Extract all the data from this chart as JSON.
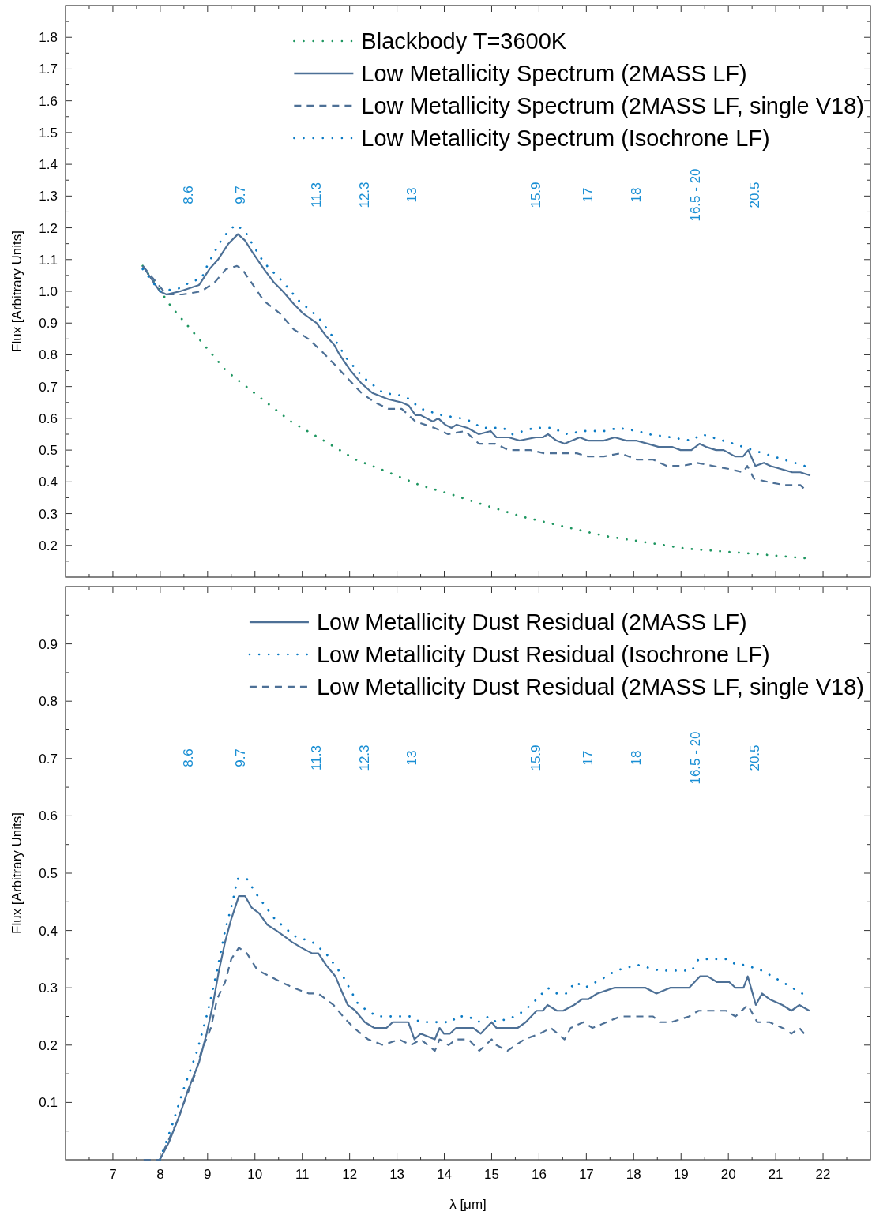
{
  "chart_data": [
    {
      "type": "line",
      "ylabel": "Flux [Arbitrary Units]",
      "legend": "top right",
      "tick_labels": "y",
      "xlim": [
        6,
        23
      ],
      "xticks": [
        {
          "value": 6.5,
          "label": null
        },
        7,
        {
          "value": 7.5,
          "label": null
        },
        8,
        {
          "value": 8.5,
          "label": null
        },
        9,
        {
          "value": 9.5,
          "label": null
        },
        10,
        {
          "value": 10.5,
          "label": null
        },
        11,
        {
          "value": 11.5,
          "label": null
        },
        12,
        {
          "value": 12.5,
          "label": null
        },
        13,
        {
          "value": 13.5,
          "label": null
        },
        14,
        {
          "value": 14.5,
          "label": null
        },
        15,
        {
          "value": 15.5,
          "label": null
        },
        16,
        {
          "value": 16.5,
          "label": null
        },
        17,
        {
          "value": 17.5,
          "label": null
        },
        18,
        {
          "value": 18.5,
          "label": null
        },
        19,
        {
          "value": 19.5,
          "label": null
        },
        20,
        {
          "value": 20.5,
          "label": null
        },
        21,
        {
          "value": 21.5,
          "label": null
        },
        22,
        {
          "value": 22.5,
          "label": null
        }
      ],
      "ylim": [
        0.1,
        1.9
      ],
      "yticks": [
        {
          "value": 0.15,
          "label": null
        },
        0.2,
        {
          "value": 0.25,
          "label": null
        },
        0.3,
        {
          "value": 0.35,
          "label": null
        },
        0.4,
        {
          "value": 0.45,
          "label": null
        },
        0.5,
        {
          "value": 0.55,
          "label": null
        },
        0.6,
        {
          "value": 0.65,
          "label": null
        },
        0.7,
        {
          "value": 0.75,
          "label": null
        },
        0.8,
        {
          "value": 0.85,
          "label": null
        },
        0.9,
        {
          "value": 0.95,
          "label": null
        },
        {
          "value": 1,
          "label": "1.0"
        },
        {
          "value": 1.05,
          "label": null
        },
        1.1,
        {
          "value": 1.15,
          "label": null
        },
        1.2,
        {
          "value": 1.25,
          "label": null
        },
        1.3,
        {
          "value": 1.35,
          "label": null
        },
        1.4,
        {
          "value": 1.45,
          "label": null
        },
        1.5,
        {
          "value": 1.55,
          "label": null
        },
        1.6,
        {
          "value": 1.65,
          "label": null
        },
        1.7,
        {
          "value": 1.75,
          "label": null
        },
        1.8,
        {
          "value": 1.85,
          "label": null
        }
      ],
      "annotations": [
        "8.6",
        "9.7",
        "11.3",
        "12.3",
        "13",
        "15.9",
        "17",
        "18",
        "16.5 - 20",
        "20.5"
      ],
      "series": [
        {
          "name": "Blackbody T=3600K",
          "color": "#1e9660",
          "line_style": "dotted",
          "x": [
            7.63,
            8.24,
            8.82,
            9.39,
            10.07,
            10.76,
            11.45,
            12.13,
            12.82,
            13.48,
            14.16,
            14.78,
            15.65,
            16.51,
            17.37,
            18.24,
            19.1,
            19.97,
            20.83,
            21.61
          ],
          "values": [
            1.08,
            0.95,
            0.85,
            0.75,
            0.67,
            0.59,
            0.53,
            0.47,
            0.43,
            0.39,
            0.36,
            0.33,
            0.29,
            0.26,
            0.23,
            0.21,
            0.19,
            0.18,
            0.17,
            0.16
          ]
        },
        {
          "name": "Low Metallicity Spectrum (2MASS LF)",
          "color": "#4d7096",
          "line_style": "solid",
          "x": [
            7.63,
            7.99,
            8.13,
            8.42,
            8.82,
            9.04,
            9.22,
            9.44,
            9.64,
            9.79,
            9.96,
            10.19,
            10.39,
            10.59,
            10.82,
            11.02,
            11.3,
            11.5,
            11.68,
            11.79,
            12.02,
            12.25,
            12.48,
            12.82,
            13.1,
            13.25,
            13.39,
            13.5,
            13.76,
            13.87,
            14.02,
            14.15,
            14.26,
            14.49,
            14.73,
            14.98,
            15.1,
            15.36,
            15.59,
            15.93,
            16.08,
            16.19,
            16.37,
            16.54,
            16.86,
            17.03,
            17.23,
            17.37,
            17.6,
            17.84,
            18.05,
            18.3,
            18.53,
            18.81,
            18.99,
            19.22,
            19.39,
            19.53,
            19.74,
            19.9,
            20.14,
            20.31,
            20.42,
            20.57,
            20.75,
            20.89,
            21.12,
            21.35,
            21.52,
            21.73
          ],
          "values": [
            1.08,
            1.0,
            0.99,
            1.0,
            1.02,
            1.07,
            1.1,
            1.15,
            1.18,
            1.16,
            1.12,
            1.07,
            1.03,
            1.0,
            0.96,
            0.93,
            0.9,
            0.86,
            0.83,
            0.8,
            0.75,
            0.71,
            0.68,
            0.66,
            0.65,
            0.64,
            0.61,
            0.61,
            0.59,
            0.6,
            0.58,
            0.57,
            0.58,
            0.57,
            0.55,
            0.56,
            0.54,
            0.54,
            0.53,
            0.54,
            0.54,
            0.55,
            0.53,
            0.52,
            0.54,
            0.53,
            0.53,
            0.53,
            0.54,
            0.53,
            0.53,
            0.52,
            0.51,
            0.51,
            0.5,
            0.5,
            0.52,
            0.51,
            0.5,
            0.5,
            0.48,
            0.48,
            0.5,
            0.45,
            0.46,
            0.45,
            0.44,
            0.43,
            0.43,
            0.42
          ]
        },
        {
          "name": "Low Metallicity Spectrum (2MASS LF, single V18)",
          "color": "#4d7096",
          "line_style": "dashed",
          "x": [
            7.63,
            8.13,
            8.47,
            8.87,
            9.16,
            9.39,
            9.62,
            9.73,
            9.96,
            10.19,
            10.53,
            10.82,
            11.13,
            11.42,
            11.68,
            11.93,
            12.25,
            12.53,
            12.82,
            13.1,
            13.39,
            13.79,
            14.08,
            14.44,
            14.73,
            15.07,
            15.36,
            15.82,
            16.11,
            16.57,
            16.8,
            17.03,
            17.37,
            17.72,
            18.07,
            18.41,
            18.7,
            19.03,
            19.33,
            19.68,
            20.03,
            20.31,
            20.4,
            20.54,
            20.83,
            21.18,
            21.52,
            21.59
          ],
          "values": [
            1.08,
            0.99,
            0.99,
            1.0,
            1.03,
            1.07,
            1.08,
            1.07,
            1.02,
            0.97,
            0.93,
            0.88,
            0.85,
            0.81,
            0.77,
            0.73,
            0.68,
            0.65,
            0.63,
            0.63,
            0.59,
            0.57,
            0.55,
            0.56,
            0.52,
            0.52,
            0.5,
            0.5,
            0.49,
            0.49,
            0.49,
            0.48,
            0.48,
            0.49,
            0.47,
            0.47,
            0.45,
            0.45,
            0.46,
            0.45,
            0.44,
            0.43,
            0.45,
            0.41,
            0.4,
            0.39,
            0.39,
            0.38
          ]
        },
        {
          "name": "Low Metallicity Spectrum (Isochrone LF)",
          "color": "#0a7ac4",
          "line_style": "dotted",
          "x": [
            7.63,
            7.99,
            8.42,
            8.64,
            8.87,
            8.99,
            9.24,
            9.39,
            9.59,
            9.79,
            9.9,
            10.19,
            10.59,
            10.93,
            11.33,
            11.68,
            11.93,
            12.28,
            12.71,
            13.17,
            13.51,
            13.94,
            14.35,
            14.58,
            14.78,
            15.24,
            15.44,
            15.9,
            16.31,
            16.54,
            16.97,
            17.42,
            17.66,
            18.09,
            18.32,
            18.79,
            19.22,
            19.44,
            19.88,
            20.11,
            20.52,
            20.95,
            21.4,
            21.61
          ],
          "values": [
            1.07,
            1.0,
            1.01,
            1.03,
            1.04,
            1.08,
            1.15,
            1.18,
            1.21,
            1.19,
            1.16,
            1.09,
            1.03,
            0.97,
            0.92,
            0.85,
            0.79,
            0.73,
            0.68,
            0.67,
            0.63,
            0.61,
            0.6,
            0.59,
            0.57,
            0.57,
            0.55,
            0.57,
            0.57,
            0.55,
            0.56,
            0.56,
            0.57,
            0.56,
            0.55,
            0.54,
            0.53,
            0.55,
            0.53,
            0.52,
            0.5,
            0.48,
            0.46,
            0.45
          ]
        }
      ]
    },
    {
      "type": "line",
      "xlabel": "λ [μm]",
      "ylabel": "Flux [Arbitrary Units]",
      "legend": "top right",
      "xlim": [
        6,
        23
      ],
      "xticks": [
        {
          "value": 6.5,
          "label": null
        },
        7,
        {
          "value": 7.5,
          "label": null
        },
        8,
        {
          "value": 8.5,
          "label": null
        },
        9,
        {
          "value": 9.5,
          "label": null
        },
        10,
        {
          "value": 10.5,
          "label": null
        },
        11,
        {
          "value": 11.5,
          "label": null
        },
        12,
        {
          "value": 12.5,
          "label": null
        },
        13,
        {
          "value": 13.5,
          "label": null
        },
        14,
        {
          "value": 14.5,
          "label": null
        },
        15,
        {
          "value": 15.5,
          "label": null
        },
        16,
        {
          "value": 16.5,
          "label": null
        },
        17,
        {
          "value": 17.5,
          "label": null
        },
        18,
        {
          "value": 18.5,
          "label": null
        },
        19,
        {
          "value": 19.5,
          "label": null
        },
        20,
        {
          "value": 20.5,
          "label": null
        },
        21,
        {
          "value": 21.5,
          "label": null
        },
        22,
        {
          "value": 22.5,
          "label": null
        }
      ],
      "ylim": [
        0,
        1
      ],
      "yticks": [
        {
          "value": 0.05,
          "label": null
        },
        0.1,
        {
          "value": 0.15,
          "label": null
        },
        0.2,
        {
          "value": 0.25,
          "label": null
        },
        0.3,
        {
          "value": 0.35,
          "label": null
        },
        0.4,
        {
          "value": 0.45,
          "label": null
        },
        0.5,
        {
          "value": 0.55,
          "label": null
        },
        0.6,
        {
          "value": 0.65,
          "label": null
        },
        0.7,
        {
          "value": 0.75,
          "label": null
        },
        0.8,
        {
          "value": 0.85,
          "label": null
        },
        0.9,
        {
          "value": 0.95,
          "label": null
        }
      ],
      "annotations": [
        "8.6",
        "9.7",
        "11.3",
        "12.3",
        "13",
        "15.9",
        "17",
        "18",
        "16.5 - 20",
        "20.5"
      ],
      "series": [
        {
          "name": "Low Metallicity Dust Residual (2MASS LF)",
          "color": "#4d7096",
          "line_style": "solid",
          "x": [
            7.99,
            8.18,
            8.42,
            8.58,
            8.82,
            8.98,
            9.11,
            9.24,
            9.37,
            9.5,
            9.66,
            9.79,
            9.93,
            10.09,
            10.26,
            10.45,
            10.62,
            10.78,
            10.98,
            11.21,
            11.34,
            11.5,
            11.7,
            11.8,
            11.96,
            12.12,
            12.32,
            12.52,
            12.78,
            12.91,
            13.24,
            13.37,
            13.5,
            13.8,
            13.9,
            13.99,
            14.12,
            14.25,
            14.44,
            14.61,
            14.77,
            15.0,
            15.1,
            15.23,
            15.36,
            15.55,
            15.72,
            15.95,
            16.08,
            16.18,
            16.38,
            16.51,
            16.74,
            16.91,
            17.04,
            17.23,
            17.59,
            17.79,
            18.05,
            18.25,
            18.48,
            18.77,
            19.0,
            19.17,
            19.4,
            19.56,
            19.76,
            20.02,
            20.15,
            20.32,
            20.41,
            20.58,
            20.71,
            20.87,
            21.14,
            21.33,
            21.5,
            21.71
          ],
          "values": [
            0.0,
            0.03,
            0.08,
            0.12,
            0.17,
            0.22,
            0.27,
            0.33,
            0.38,
            0.42,
            0.46,
            0.46,
            0.44,
            0.43,
            0.41,
            0.4,
            0.39,
            0.38,
            0.37,
            0.36,
            0.36,
            0.34,
            0.32,
            0.3,
            0.27,
            0.26,
            0.24,
            0.23,
            0.23,
            0.24,
            0.24,
            0.21,
            0.22,
            0.21,
            0.23,
            0.22,
            0.22,
            0.23,
            0.23,
            0.23,
            0.22,
            0.24,
            0.23,
            0.23,
            0.23,
            0.23,
            0.24,
            0.26,
            0.26,
            0.27,
            0.26,
            0.26,
            0.27,
            0.28,
            0.28,
            0.29,
            0.3,
            0.3,
            0.3,
            0.3,
            0.29,
            0.3,
            0.3,
            0.3,
            0.32,
            0.32,
            0.31,
            0.31,
            0.3,
            0.3,
            0.32,
            0.27,
            0.29,
            0.28,
            0.27,
            0.26,
            0.27,
            0.26
          ]
        },
        {
          "name": "Low Metallicity Dust Residual (Isochrone LF)",
          "color": "#0a7ac4",
          "line_style": "dotted",
          "x": [
            7.99,
            8.25,
            8.48,
            8.78,
            9.01,
            9.2,
            9.37,
            9.53,
            9.63,
            9.83,
            10.06,
            10.42,
            10.84,
            11.21,
            11.5,
            11.86,
            12.19,
            12.58,
            13.01,
            13.27,
            13.5,
            13.83,
            14.16,
            14.25,
            14.51,
            14.71,
            14.94,
            15.1,
            15.49,
            15.69,
            15.95,
            16.18,
            16.38,
            16.57,
            16.77,
            16.97,
            17.43,
            17.62,
            18.08,
            18.55,
            18.97,
            19.23,
            19.37,
            19.69,
            19.95,
            20.18,
            20.35,
            20.71,
            21.14,
            21.56
          ],
          "values": [
            0.0,
            0.06,
            0.12,
            0.19,
            0.26,
            0.33,
            0.4,
            0.45,
            0.49,
            0.49,
            0.46,
            0.42,
            0.39,
            0.38,
            0.36,
            0.32,
            0.27,
            0.25,
            0.25,
            0.25,
            0.24,
            0.24,
            0.24,
            0.25,
            0.25,
            0.24,
            0.25,
            0.24,
            0.25,
            0.26,
            0.28,
            0.3,
            0.29,
            0.29,
            0.31,
            0.3,
            0.32,
            0.33,
            0.34,
            0.33,
            0.33,
            0.33,
            0.35,
            0.35,
            0.35,
            0.34,
            0.34,
            0.33,
            0.31,
            0.29
          ]
        },
        {
          "name": "Low Metallicity Dust Residual (2MASS LF, single V18)",
          "color": "#4d7096",
          "line_style": "dashed",
          "x": [
            7.65,
            7.99,
            8.15,
            8.32,
            8.55,
            8.74,
            8.87,
            9.07,
            9.2,
            9.37,
            9.5,
            9.66,
            9.83,
            10.06,
            10.32,
            10.55,
            10.81,
            11.14,
            11.34,
            11.66,
            11.86,
            12.09,
            12.39,
            12.71,
            13.04,
            13.3,
            13.5,
            13.8,
            13.9,
            14.09,
            14.25,
            14.51,
            14.74,
            15.0,
            15.1,
            15.33,
            15.69,
            16.02,
            16.25,
            16.54,
            16.67,
            16.94,
            17.13,
            17.43,
            17.72,
            18.12,
            18.41,
            18.55,
            18.79,
            19.17,
            19.37,
            19.69,
            19.95,
            20.15,
            20.41,
            20.61,
            20.87,
            21.14,
            21.33,
            21.5,
            21.6
          ],
          "values": [
            0.0,
            0.0,
            0.03,
            0.06,
            0.11,
            0.15,
            0.19,
            0.23,
            0.28,
            0.31,
            0.35,
            0.37,
            0.36,
            0.33,
            0.32,
            0.31,
            0.3,
            0.29,
            0.29,
            0.27,
            0.25,
            0.23,
            0.21,
            0.2,
            0.21,
            0.2,
            0.21,
            0.19,
            0.21,
            0.2,
            0.21,
            0.21,
            0.19,
            0.21,
            0.2,
            0.19,
            0.21,
            0.22,
            0.23,
            0.21,
            0.23,
            0.24,
            0.23,
            0.24,
            0.25,
            0.25,
            0.25,
            0.24,
            0.24,
            0.25,
            0.26,
            0.26,
            0.26,
            0.25,
            0.27,
            0.24,
            0.24,
            0.23,
            0.22,
            0.23,
            0.22
          ]
        }
      ]
    }
  ]
}
